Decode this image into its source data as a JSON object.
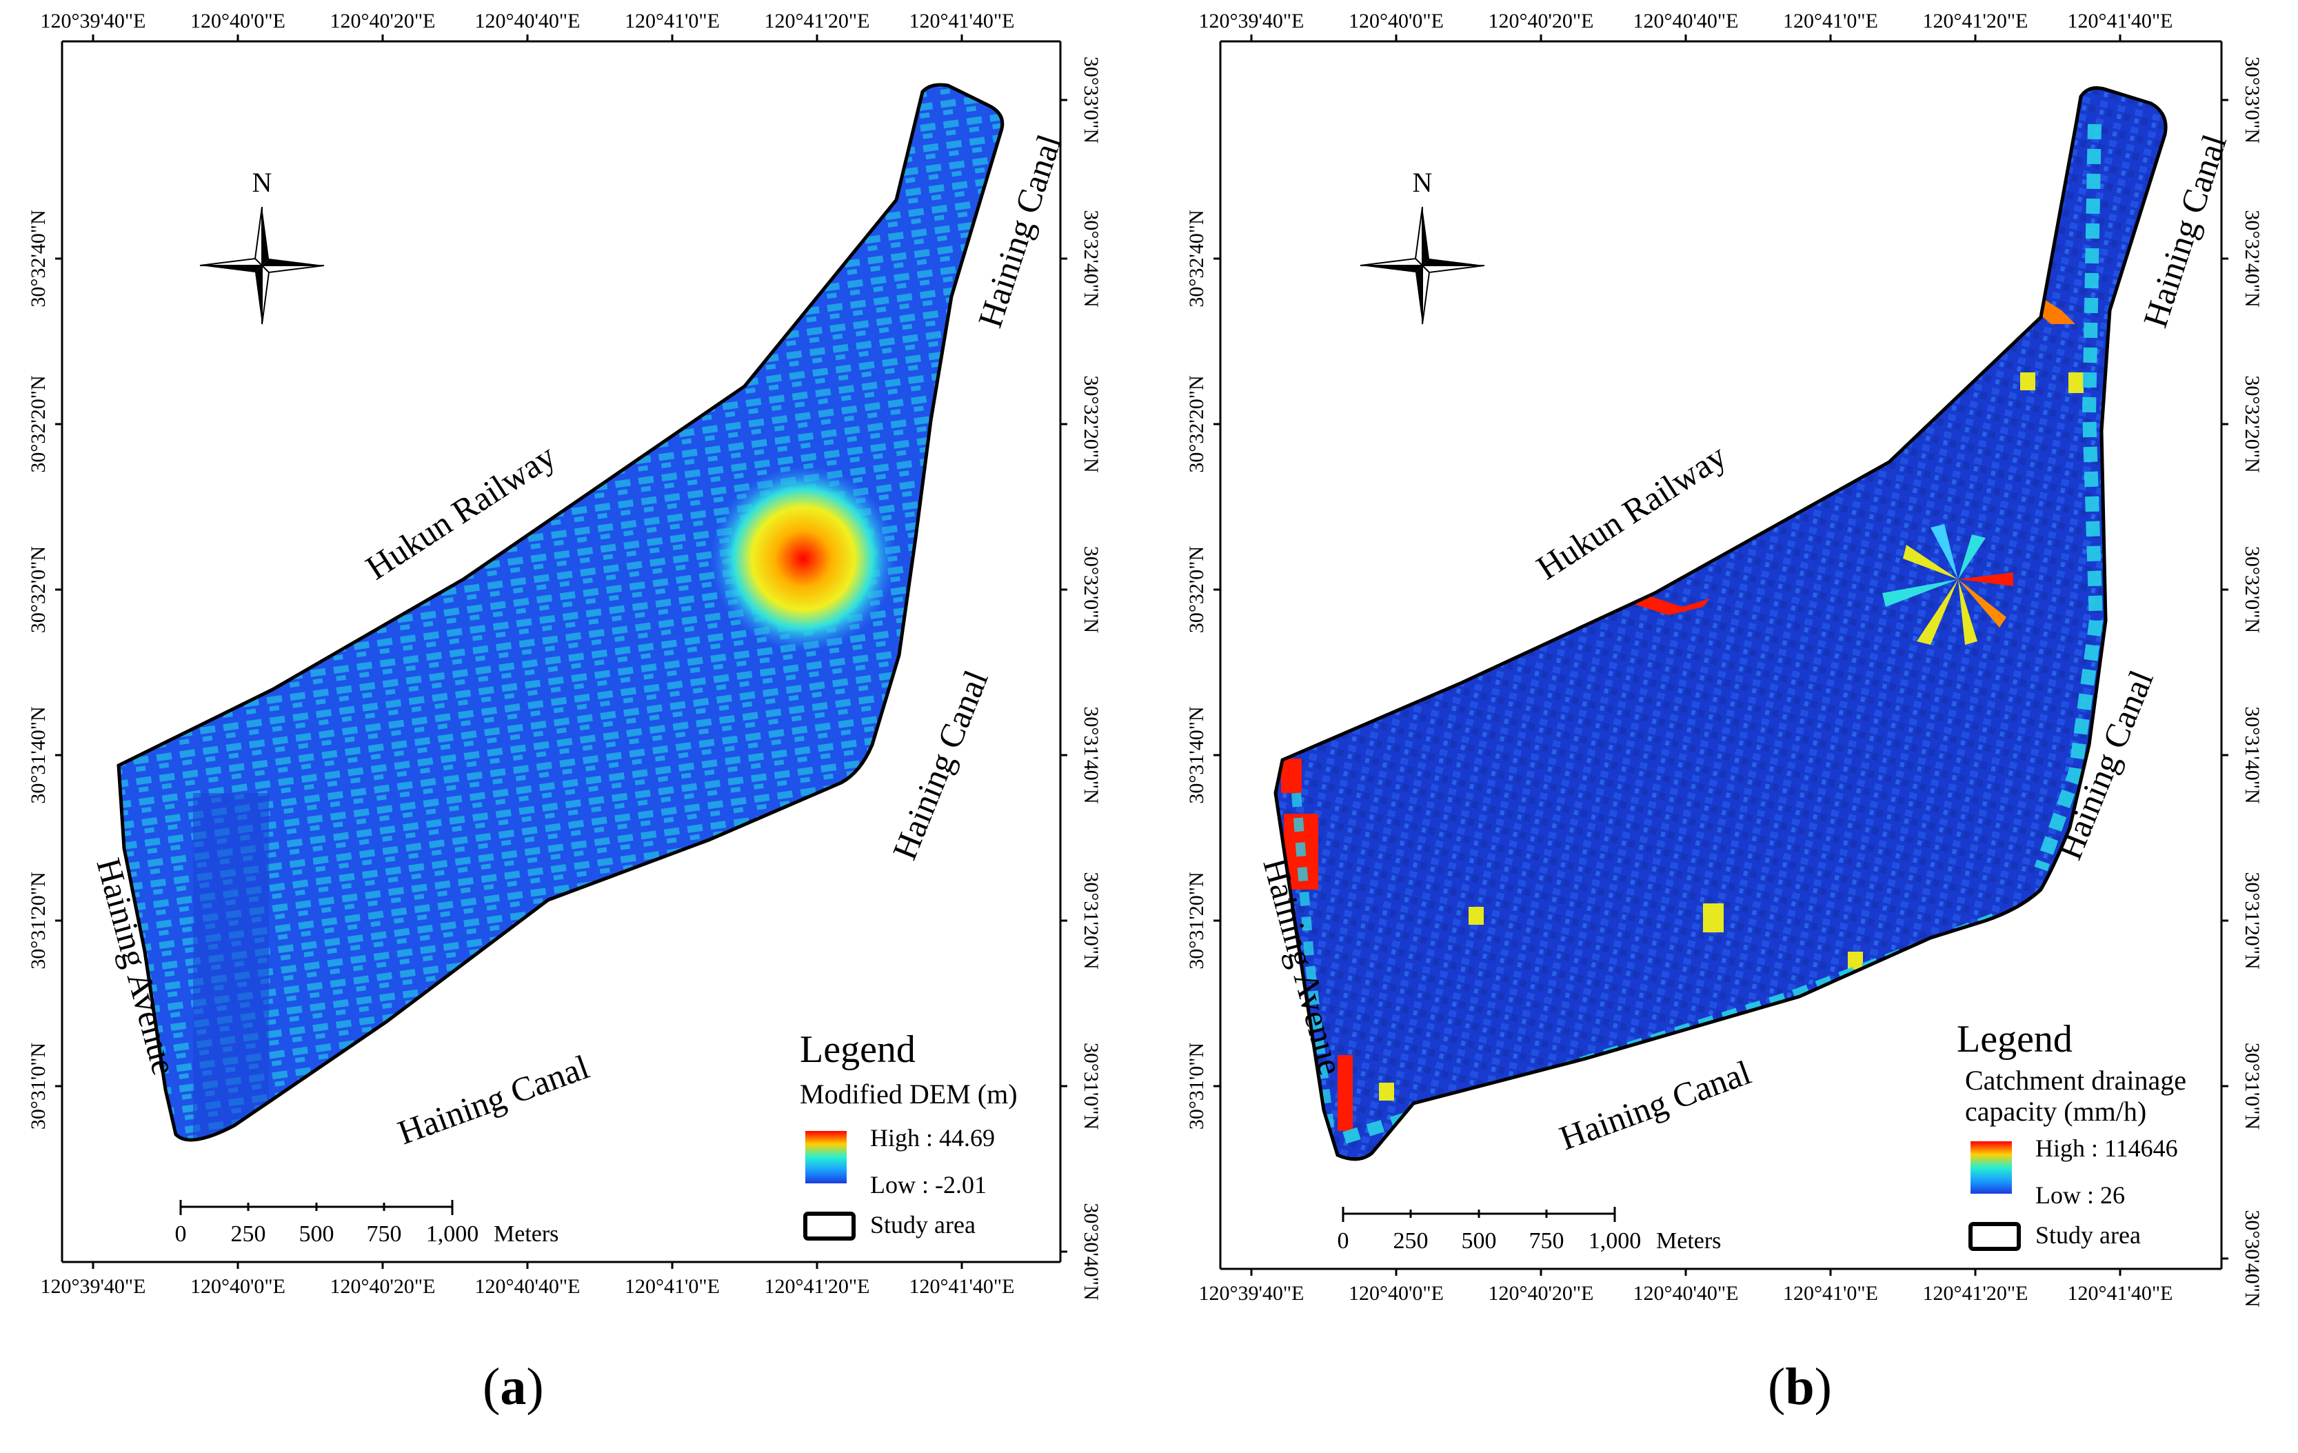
{
  "panels": [
    {
      "id": "a",
      "label": "a",
      "top_coords": [
        "120°39'40\"E",
        "120°40'0\"E",
        "120°40'20\"E",
        "120°40'40\"E",
        "120°41'0\"E",
        "120°41'20\"E",
        "120°41'40\"E"
      ],
      "bottom_coords": [
        "120°39'40\"E",
        "120°40'0\"E",
        "120°40'20\"E",
        "120°40'40\"E",
        "120°41'0\"E",
        "120°41'20\"E",
        "120°41'40\"E"
      ],
      "lat_coords": [
        "30°33'0\"N",
        "30°32'40\"N",
        "30°32'20\"N",
        "30°32'0\"N",
        "30°31'40\"N",
        "30°31'20\"N",
        "30°31'0\"N",
        "30°30'40\"N"
      ],
      "left_lat_coords": [
        "30°32'40\"N",
        "30°32'20\"N",
        "30°32'0\"N",
        "30°31'40\"N",
        "30°31'20\"N",
        "30°31'0\"N"
      ],
      "road_labels": {
        "railway": "Hukun Railway",
        "canal_ne": "Haining Canal",
        "canal_e": "Haining Canal",
        "canal_s": "Haining Canal",
        "avenue": "Haining Avenue"
      },
      "north": "N",
      "legend": {
        "title": "Legend",
        "subtitle": "Modified DEM (m)",
        "high": "High : 44.69",
        "low": "Low : -2.01",
        "study_area": "Study area"
      },
      "scale": {
        "ticks": [
          "0",
          "250",
          "500",
          "750",
          "1,000"
        ],
        "unit": "Meters"
      }
    },
    {
      "id": "b",
      "label": "b",
      "top_coords": [
        "120°39'40\"E",
        "120°40'0\"E",
        "120°40'20\"E",
        "120°40'40\"E",
        "120°41'0\"E",
        "120°41'20\"E",
        "120°41'40\"E"
      ],
      "bottom_coords": [
        "120°39'40\"E",
        "120°40'0\"E",
        "120°40'20\"E",
        "120°40'40\"E",
        "120°41'0\"E",
        "120°41'20\"E",
        "120°41'40\"E"
      ],
      "lat_coords": [
        "30°33'0\"N",
        "30°32'40\"N",
        "30°32'20\"N",
        "30°32'0\"N",
        "30°31'40\"N",
        "30°31'20\"N",
        "30°31'0\"N",
        "30°30'40\"N"
      ],
      "left_lat_coords": [
        "30°32'40\"N",
        "30°32'20\"N",
        "30°32'0\"N",
        "30°31'40\"N",
        "30°31'20\"N",
        "30°31'0\"N"
      ],
      "road_labels": {
        "railway": "Hukun Railway",
        "canal_ne": "Haining Canal",
        "canal_e": "Haining Canal",
        "canal_s": "Haining Canal",
        "avenue": "Haining Avenue"
      },
      "north": "N",
      "legend": {
        "title": "Legend",
        "subtitle": "Catchment drainage",
        "subtitle2": "capacity (mm/h)",
        "high": "High : 114646",
        "low": "Low : 26",
        "study_area": "Study area"
      },
      "scale": {
        "ticks": [
          "0",
          "250",
          "500",
          "750",
          "1,000"
        ],
        "unit": "Meters"
      }
    }
  ],
  "colors": {
    "dem_base": "#1f52e8",
    "dem_building": "#1fc6e8",
    "catch_base": "#1a3fd4",
    "hot": "#ff1a00",
    "boundary": "#000000"
  }
}
